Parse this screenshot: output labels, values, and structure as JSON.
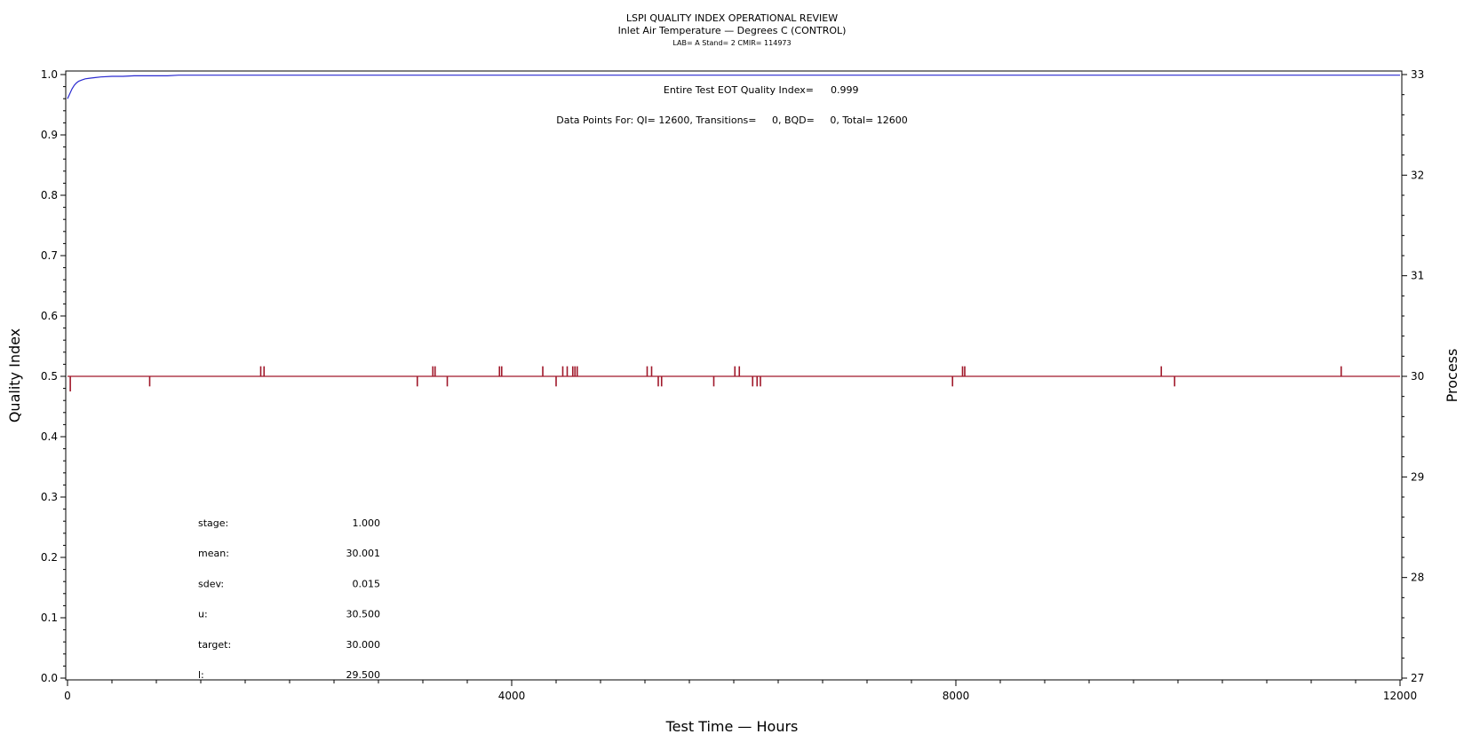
{
  "chart_data": {
    "type": "line",
    "title": "LSPI QUALITY INDEX OPERATIONAL REVIEW",
    "subtitle": "Inlet Air Temperature — Degrees C (CONTROL)",
    "subtitle2": "LAB= A Stand= 2 CMIR= 114973",
    "xlabel": "Test Time — Hours",
    "ylabel_left": "Quality Index",
    "ylabel_right": "Process",
    "xlim": [
      0,
      12000
    ],
    "ylim_left": [
      0.0,
      1.0
    ],
    "ylim_right": [
      27,
      33
    ],
    "x_ticks": [
      "0",
      "4000",
      "8000",
      "12000"
    ],
    "y_left_ticks": [
      "0.0",
      "0.1",
      "0.2",
      "0.3",
      "0.4",
      "0.5",
      "0.6",
      "0.7",
      "0.8",
      "0.9",
      "1.0"
    ],
    "y_right_ticks": [
      "27",
      "28",
      "29",
      "30",
      "31",
      "32",
      "33"
    ],
    "annotations": {
      "eot_label": "Entire Test EOT Quality Index=",
      "eot_value": "0.999",
      "data_points": "Data Points For: QI= 12600, Transitions=     0, BQD=     0, Total= 12600"
    },
    "stats": [
      {
        "label": "stage:",
        "value": "1.000"
      },
      {
        "label": "mean:",
        "value": "30.001"
      },
      {
        "label": "sdev:",
        "value": "0.015"
      },
      {
        "label": "u:",
        "value": "30.500"
      },
      {
        "label": "target:",
        "value": "30.000"
      },
      {
        "label": "l:",
        "value": "29.500"
      }
    ],
    "colors": {
      "quality_index": "#2a2ad0",
      "process": "#a0182a"
    },
    "series": [
      {
        "axis": "left",
        "x": [
          0,
          20,
          40,
          60,
          80,
          100,
          130,
          160,
          200,
          250,
          300,
          400,
          500,
          600,
          700,
          800,
          900,
          1000,
          12000
        ],
        "values": [
          0.96,
          0.968,
          0.976,
          0.982,
          0.986,
          0.989,
          0.991,
          0.993,
          0.994,
          0.995,
          0.996,
          0.997,
          0.997,
          0.998,
          0.998,
          0.998,
          0.998,
          0.999,
          0.999
        ]
      },
      {
        "axis": "right",
        "baseline": 30.0,
        "x_start": 0,
        "x_end": 12000,
        "spikes": [
          {
            "x": 25,
            "y": 29.85
          },
          {
            "x": 740,
            "y": 29.9
          },
          {
            "x": 1740,
            "y": 30.1
          },
          {
            "x": 1770,
            "y": 30.1
          },
          {
            "x": 3150,
            "y": 29.9
          },
          {
            "x": 3290,
            "y": 30.1
          },
          {
            "x": 3310,
            "y": 30.1
          },
          {
            "x": 3420,
            "y": 29.9
          },
          {
            "x": 3890,
            "y": 30.1
          },
          {
            "x": 3910,
            "y": 30.1
          },
          {
            "x": 4280,
            "y": 30.1
          },
          {
            "x": 4400,
            "y": 29.9
          },
          {
            "x": 4460,
            "y": 30.1
          },
          {
            "x": 4500,
            "y": 30.1
          },
          {
            "x": 4550,
            "y": 30.1
          },
          {
            "x": 4570,
            "y": 30.1
          },
          {
            "x": 4590,
            "y": 30.1
          },
          {
            "x": 5220,
            "y": 30.1
          },
          {
            "x": 5260,
            "y": 30.1
          },
          {
            "x": 5320,
            "y": 29.9
          },
          {
            "x": 5350,
            "y": 29.9
          },
          {
            "x": 5820,
            "y": 29.9
          },
          {
            "x": 6010,
            "y": 30.1
          },
          {
            "x": 6050,
            "y": 30.1
          },
          {
            "x": 6170,
            "y": 29.9
          },
          {
            "x": 6210,
            "y": 29.9
          },
          {
            "x": 6240,
            "y": 29.9
          },
          {
            "x": 7970,
            "y": 29.9
          },
          {
            "x": 8060,
            "y": 30.1
          },
          {
            "x": 8080,
            "y": 30.1
          },
          {
            "x": 9850,
            "y": 30.1
          },
          {
            "x": 9970,
            "y": 29.9
          },
          {
            "x": 11470,
            "y": 30.1
          }
        ]
      }
    ]
  }
}
